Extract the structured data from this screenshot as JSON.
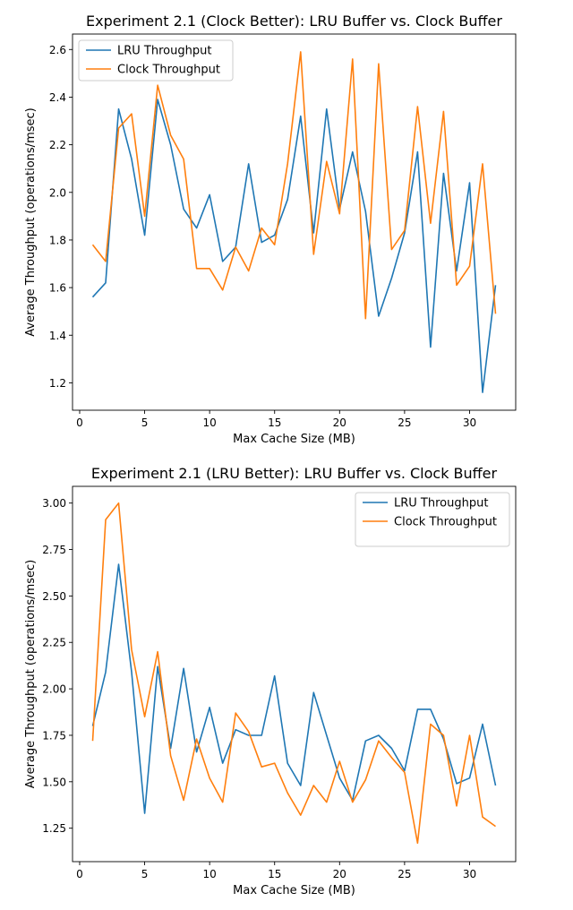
{
  "figure": {
    "charts": [
      {
        "title": "Experiment 2.1 (Clock Better): LRU Buffer vs. Clock Buffer",
        "xlabel": "Max Cache Size (MB)",
        "ylabel": "Average Throughput (operations/msec)"
      },
      {
        "title": "Experiment 2.1 (LRU Better): LRU Buffer vs. Clock Buffer",
        "xlabel": "Max Cache Size (MB)",
        "ylabel": "Average Throughput (operations/msec)"
      }
    ]
  },
  "chart_data": [
    {
      "type": "line",
      "title": "Experiment 2.1 (Clock Better): LRU Buffer vs. Clock Buffer",
      "xlabel": "Max Cache Size (MB)",
      "ylabel": "Average Throughput (operations/msec)",
      "xlim": [
        -0.55,
        33.55
      ],
      "ylim": [
        1.085,
        2.665
      ],
      "xticks": [
        0,
        5,
        10,
        15,
        20,
        25,
        30
      ],
      "yticks": [
        1.2,
        1.4,
        1.6,
        1.8,
        2.0,
        2.2,
        2.4,
        2.6
      ],
      "ytick_labels": [
        "1.2",
        "1.4",
        "1.6",
        "1.8",
        "2.0",
        "2.2",
        "2.4",
        "2.6"
      ],
      "grid": false,
      "legend_position": "top-left",
      "x": [
        1,
        2,
        3,
        4,
        5,
        6,
        7,
        8,
        9,
        10,
        11,
        12,
        13,
        14,
        15,
        16,
        17,
        18,
        19,
        20,
        21,
        22,
        23,
        24,
        25,
        26,
        27,
        28,
        29,
        30,
        31,
        32
      ],
      "series": [
        {
          "name": "LRU Throughput",
          "color": "#1f77b4",
          "values": [
            1.56,
            1.62,
            2.35,
            2.14,
            1.82,
            2.39,
            2.2,
            1.93,
            1.85,
            1.99,
            1.71,
            1.77,
            2.12,
            1.79,
            1.82,
            1.97,
            2.32,
            1.83,
            2.35,
            1.93,
            2.17,
            1.92,
            1.48,
            1.64,
            1.83,
            2.17,
            1.35,
            2.08,
            1.67,
            2.04,
            1.16,
            1.61
          ]
        },
        {
          "name": "Clock Throughput",
          "color": "#ff7f0e",
          "values": [
            1.78,
            1.71,
            2.27,
            2.33,
            1.9,
            2.45,
            2.24,
            2.14,
            1.68,
            1.68,
            1.59,
            1.77,
            1.67,
            1.85,
            1.78,
            2.12,
            2.59,
            1.74,
            2.13,
            1.91,
            2.56,
            1.47,
            2.54,
            1.76,
            1.84,
            2.36,
            1.87,
            2.34,
            1.61,
            1.69,
            2.12,
            1.49
          ]
        }
      ]
    },
    {
      "type": "line",
      "title": "Experiment 2.1 (LRU Better): LRU Buffer vs. Clock Buffer",
      "xlabel": "Max Cache Size (MB)",
      "ylabel": "Average Throughput (operations/msec)",
      "xlim": [
        -0.55,
        33.55
      ],
      "ylim": [
        1.07,
        3.09
      ],
      "xticks": [
        0,
        5,
        10,
        15,
        20,
        25,
        30
      ],
      "yticks": [
        1.25,
        1.5,
        1.75,
        2.0,
        2.25,
        2.5,
        2.75,
        3.0
      ],
      "ytick_labels": [
        "1.25",
        "1.50",
        "1.75",
        "2.00",
        "2.25",
        "2.50",
        "2.75",
        "3.00"
      ],
      "grid": false,
      "legend_position": "top-right",
      "x": [
        1,
        2,
        3,
        4,
        5,
        6,
        7,
        8,
        9,
        10,
        11,
        12,
        13,
        14,
        15,
        16,
        17,
        18,
        19,
        20,
        21,
        22,
        23,
        24,
        25,
        26,
        27,
        28,
        29,
        30,
        31,
        32
      ],
      "series": [
        {
          "name": "LRU Throughput",
          "color": "#1f77b4",
          "values": [
            1.8,
            2.09,
            2.67,
            2.09,
            1.33,
            2.12,
            1.68,
            2.11,
            1.66,
            1.9,
            1.6,
            1.78,
            1.75,
            1.75,
            2.07,
            1.6,
            1.48,
            1.98,
            1.75,
            1.52,
            1.4,
            1.72,
            1.75,
            1.68,
            1.56,
            1.89,
            1.89,
            1.73,
            1.49,
            1.52,
            1.81,
            1.48
          ]
        },
        {
          "name": "Clock Throughput",
          "color": "#ff7f0e",
          "values": [
            1.72,
            2.91,
            3.0,
            2.21,
            1.85,
            2.2,
            1.64,
            1.4,
            1.73,
            1.52,
            1.39,
            1.87,
            1.77,
            1.58,
            1.6,
            1.44,
            1.32,
            1.48,
            1.39,
            1.61,
            1.39,
            1.51,
            1.72,
            1.63,
            1.55,
            1.17,
            1.81,
            1.75,
            1.37,
            1.75,
            1.31,
            1.26
          ]
        }
      ]
    }
  ]
}
